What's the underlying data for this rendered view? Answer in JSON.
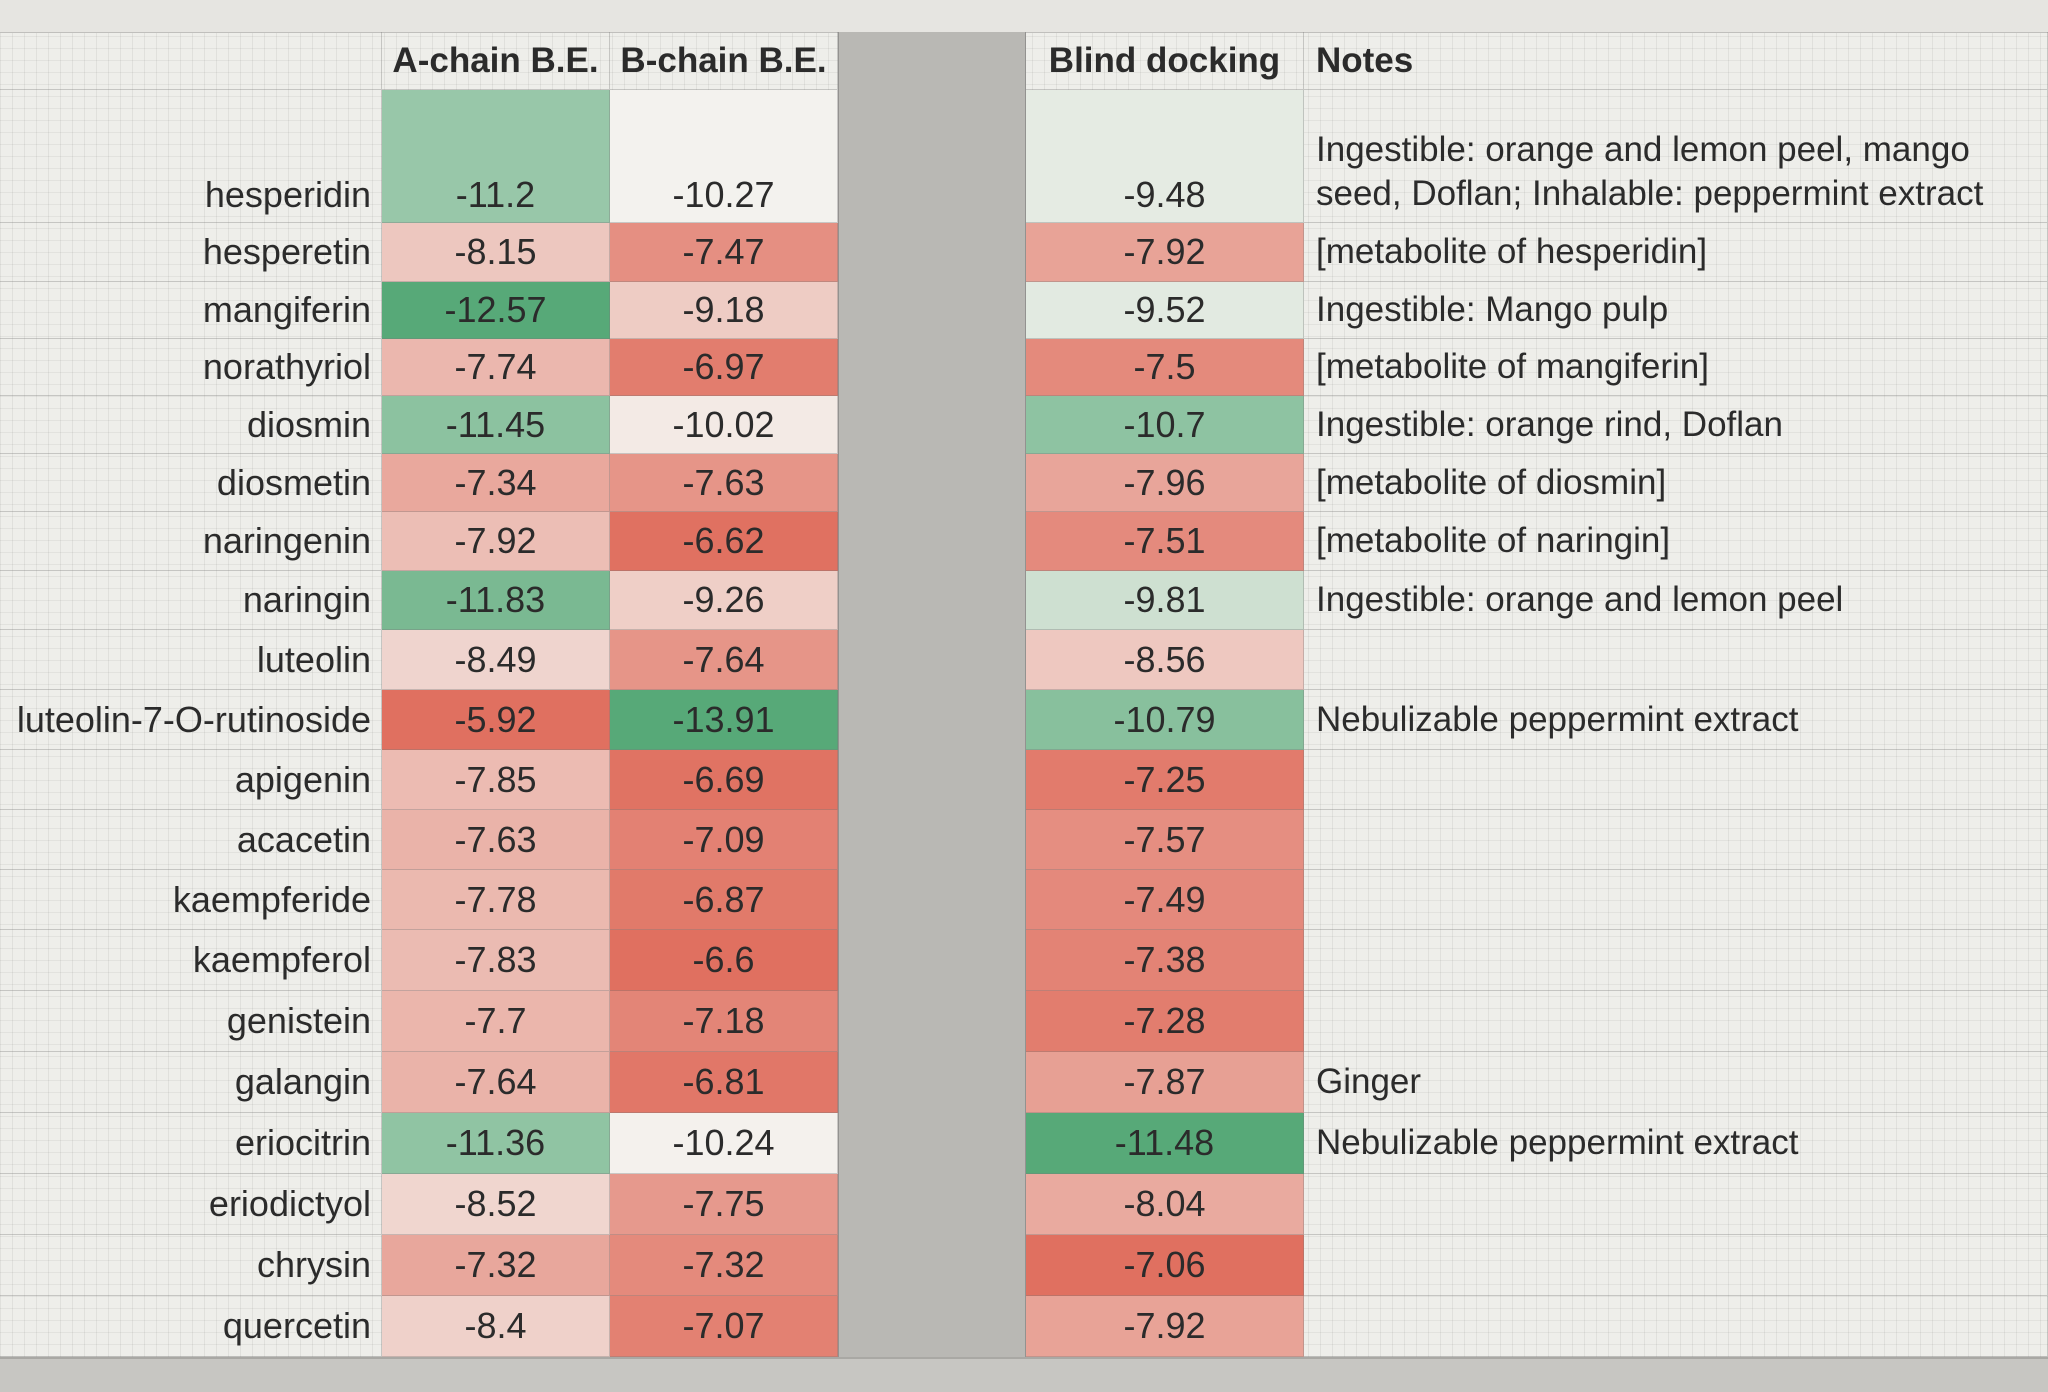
{
  "headers": {
    "a_chain": "A-chain B.E.",
    "b_chain": "B-chain B.E.",
    "blind": "Blind docking",
    "notes": "Notes"
  },
  "rows": [
    {
      "name": "hesperidin",
      "a": "-11.2",
      "b": "-10.27",
      "blind": "-9.48",
      "note": "Ingestible: orange and lemon peel, mango",
      "note2": "seed, Doflan; Inhalable: peppermint extract"
    },
    {
      "name": "hesperetin",
      "a": "-8.15",
      "b": "-7.47",
      "blind": "-7.92",
      "note": "[metabolite of hesperidin]"
    },
    {
      "name": "mangiferin",
      "a": "-12.57",
      "b": "-9.18",
      "blind": "-9.52",
      "note": "Ingestible: Mango pulp"
    },
    {
      "name": "norathyriol",
      "a": "-7.74",
      "b": "-6.97",
      "blind": "-7.5",
      "note": "[metabolite of mangiferin]"
    },
    {
      "name": "diosmin",
      "a": "-11.45",
      "b": "-10.02",
      "blind": "-10.7",
      "note": "Ingestible: orange rind, Doflan"
    },
    {
      "name": "diosmetin",
      "a": "-7.34",
      "b": "-7.63",
      "blind": "-7.96",
      "note": "[metabolite of diosmin]"
    },
    {
      "name": "naringenin",
      "a": "-7.92",
      "b": "-6.62",
      "blind": "-7.51",
      "note": "[metabolite of naringin]"
    },
    {
      "name": "naringin",
      "a": "-11.83",
      "b": "-9.26",
      "blind": "-9.81",
      "note": "Ingestible: orange and lemon peel"
    },
    {
      "name": "luteolin",
      "a": "-8.49",
      "b": "-7.64",
      "blind": "-8.56",
      "note": ""
    },
    {
      "name": "luteolin-7-O-rutinoside",
      "a": "-5.92",
      "b": "-13.91",
      "blind": "-10.79",
      "note": "Nebulizable peppermint extract"
    },
    {
      "name": "apigenin",
      "a": "-7.85",
      "b": "-6.69",
      "blind": "-7.25",
      "note": ""
    },
    {
      "name": "acacetin",
      "a": "-7.63",
      "b": "-7.09",
      "blind": "-7.57",
      "note": ""
    },
    {
      "name": "kaempferide",
      "a": "-7.78",
      "b": "-6.87",
      "blind": "-7.49",
      "note": ""
    },
    {
      "name": "kaempferol",
      "a": "-7.83",
      "b": "-6.6",
      "blind": "-7.38",
      "note": ""
    },
    {
      "name": "genistein",
      "a": "-7.7",
      "b": "-7.18",
      "blind": "-7.28",
      "note": ""
    },
    {
      "name": "galangin",
      "a": "-7.64",
      "b": "-6.81",
      "blind": "-7.87",
      "note": "Ginger"
    },
    {
      "name": "eriocitrin",
      "a": "-11.36",
      "b": "-10.24",
      "blind": "-11.48",
      "note": "Nebulizable peppermint extract"
    },
    {
      "name": "eriodictyol",
      "a": "-8.52",
      "b": "-7.75",
      "blind": "-8.04",
      "note": ""
    },
    {
      "name": "chrysin",
      "a": "-7.32",
      "b": "-7.32",
      "blind": "-7.06",
      "note": ""
    },
    {
      "name": "quercetin",
      "a": "-8.4",
      "b": "-7.07",
      "blind": "-7.92",
      "note": ""
    }
  ],
  "colors": {
    "strong_green": "#57a978",
    "neutral": "#f4f2ee",
    "strong_red": "#e07060"
  }
}
